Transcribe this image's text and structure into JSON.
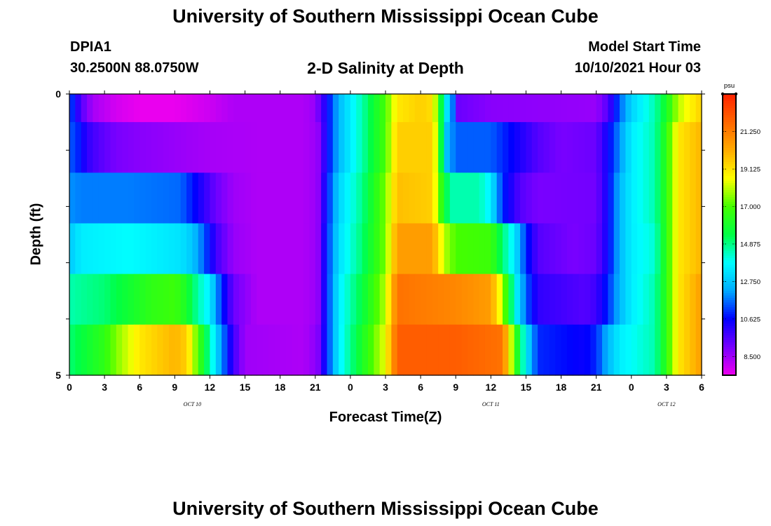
{
  "page": {
    "title_top": "University of Southern Mississippi Ocean Cube",
    "title_bottom": "University of Southern Mississippi Ocean Cube",
    "station": "DPIA1",
    "location": "30.2500N  88.0750W",
    "model_start_label": "Model Start Time",
    "model_start_value": "10/10/2021 Hour 03"
  },
  "chart_data": {
    "type": "heatmap",
    "title": "2-D Salinity at Depth",
    "xlabel": "Forecast Time(Z)",
    "ylabel": "Depth (ft)",
    "x_range_hours": [
      0,
      54
    ],
    "y_range": [
      0,
      5
    ],
    "y_ticks": [
      "0",
      "",
      "",
      "",
      "",
      "5"
    ],
    "x_ticks": [
      "0",
      "3",
      "6",
      "9",
      "12",
      "15",
      "18",
      "21",
      "0",
      "3",
      "6",
      "9",
      "12",
      "15",
      "18",
      "21",
      "0",
      "3",
      "6"
    ],
    "day_labels": [
      {
        "label": "OCT  10",
        "hour": 10.5
      },
      {
        "label": "OCT  11",
        "hour": 36
      },
      {
        "label": "OCT  12",
        "hour": 51
      }
    ],
    "colorbar": {
      "unit": "psu",
      "min": 7.44,
      "max": 23.38,
      "tick_labels": [
        "21.250",
        "19.125",
        "17.000",
        "14.875",
        "12.750",
        "10.625",
        "8.500"
      ],
      "tick_values": [
        21.25,
        19.125,
        17.0,
        14.875,
        12.75,
        10.625,
        8.5
      ],
      "colors": [
        "#ee00ee",
        "#7700ff",
        "#0000ff",
        "#00aaff",
        "#00ffff",
        "#00ff44",
        "#44ff00",
        "#ffff00",
        "#ffaa00",
        "#ff6600",
        "#ff2200"
      ]
    },
    "series": [
      {
        "name": "depth layer 1",
        "keyframes": [
          [
            0,
            11.5
          ],
          [
            1,
            9.5
          ],
          [
            2,
            8.4
          ],
          [
            4,
            7.8
          ],
          [
            6,
            7.5
          ],
          [
            9,
            7.5
          ],
          [
            12,
            7.9
          ],
          [
            14,
            8.3
          ],
          [
            16,
            8.3
          ],
          [
            20,
            8.3
          ],
          [
            21,
            8.6
          ],
          [
            22,
            10.5
          ],
          [
            23,
            12.5
          ],
          [
            25,
            14.5
          ],
          [
            27,
            17
          ],
          [
            28,
            19
          ],
          [
            30,
            19.5
          ],
          [
            31,
            19.2
          ],
          [
            31.5,
            17
          ],
          [
            32,
            14
          ],
          [
            32.7,
            12
          ],
          [
            33.2,
            9.2
          ],
          [
            36,
            8.8
          ],
          [
            45,
            8.6
          ],
          [
            46,
            9.5
          ],
          [
            47,
            11.5
          ],
          [
            48,
            13
          ],
          [
            50,
            14.5
          ],
          [
            51,
            16
          ],
          [
            52,
            18
          ],
          [
            54,
            19.5
          ]
        ]
      },
      {
        "name": "depth layer 2",
        "keyframes": [
          [
            0,
            11.5
          ],
          [
            0.7,
            11
          ],
          [
            1.5,
            10
          ],
          [
            2.5,
            9.5
          ],
          [
            4,
            9.0
          ],
          [
            6,
            8.8
          ],
          [
            9,
            8.6
          ],
          [
            12,
            8.4
          ],
          [
            16,
            8.3
          ],
          [
            20,
            8.3
          ],
          [
            21.2,
            8.6
          ],
          [
            22,
            10.5
          ],
          [
            23,
            12.5
          ],
          [
            25,
            14.5
          ],
          [
            27,
            17
          ],
          [
            28,
            19.5
          ],
          [
            31,
            19.5
          ],
          [
            31.6,
            17
          ],
          [
            32,
            13
          ],
          [
            33,
            11.5
          ],
          [
            36,
            11.5
          ],
          [
            38,
            10.5
          ],
          [
            40,
            9.5
          ],
          [
            42,
            9
          ],
          [
            45,
            9.2
          ],
          [
            46,
            10.5
          ],
          [
            47,
            12
          ],
          [
            48,
            13.5
          ],
          [
            50,
            14.5
          ],
          [
            51,
            16.5
          ],
          [
            52,
            19
          ],
          [
            54,
            20
          ]
        ]
      },
      {
        "name": "depth layer 3",
        "keyframes": [
          [
            0,
            12
          ],
          [
            1,
            11.8
          ],
          [
            5,
            11.8
          ],
          [
            9.5,
            11.6
          ],
          [
            10.5,
            10.8
          ],
          [
            11.5,
            10
          ],
          [
            12.5,
            9.2
          ],
          [
            14,
            8.5
          ],
          [
            16,
            8.3
          ],
          [
            20,
            8.3
          ],
          [
            21.2,
            8.6
          ],
          [
            22,
            10.8
          ],
          [
            23,
            13
          ],
          [
            25,
            14.8
          ],
          [
            27,
            17.5
          ],
          [
            28,
            19.8
          ],
          [
            31,
            19.5
          ],
          [
            31.8,
            16.5
          ],
          [
            32.5,
            14.5
          ],
          [
            35,
            14.5
          ],
          [
            36,
            13.5
          ],
          [
            37,
            11
          ],
          [
            38.5,
            9.5
          ],
          [
            40,
            9
          ],
          [
            45,
            9.1
          ],
          [
            46,
            10.5
          ],
          [
            47,
            12.5
          ],
          [
            48,
            13.5
          ],
          [
            50,
            14.5
          ],
          [
            51,
            16.5
          ],
          [
            52,
            19
          ],
          [
            54,
            20
          ]
        ]
      },
      {
        "name": "depth layer 4",
        "keyframes": [
          [
            0,
            12.8
          ],
          [
            1,
            13.5
          ],
          [
            5,
            13.8
          ],
          [
            9.5,
            13.3
          ],
          [
            10.5,
            12.8
          ],
          [
            11.5,
            11.5
          ],
          [
            12.5,
            9.8
          ],
          [
            14,
            8.6
          ],
          [
            16,
            8.3
          ],
          [
            20,
            8.3
          ],
          [
            21.2,
            8.6
          ],
          [
            22,
            11
          ],
          [
            23,
            13.2
          ],
          [
            25,
            15
          ],
          [
            27,
            17.5
          ],
          [
            28,
            20.5
          ],
          [
            31,
            20.5
          ],
          [
            32,
            18
          ],
          [
            33,
            17
          ],
          [
            36,
            16.8
          ],
          [
            37,
            15
          ],
          [
            38,
            13.5
          ],
          [
            39,
            11
          ],
          [
            40,
            9.5
          ],
          [
            43,
            9
          ],
          [
            45,
            9.2
          ],
          [
            46,
            10.5
          ],
          [
            47,
            12.5
          ],
          [
            48,
            13.5
          ],
          [
            50,
            14.2
          ],
          [
            51,
            16.5
          ],
          [
            52,
            19
          ],
          [
            54,
            20
          ]
        ]
      },
      {
        "name": "depth layer 5",
        "keyframes": [
          [
            0,
            14.5
          ],
          [
            1,
            14.7
          ],
          [
            3,
            15
          ],
          [
            5,
            15.8
          ],
          [
            7,
            16.5
          ],
          [
            9,
            16.8
          ],
          [
            10,
            16
          ],
          [
            11,
            14.5
          ],
          [
            12,
            13.5
          ],
          [
            13,
            11
          ],
          [
            14,
            9.2
          ],
          [
            16,
            8.3
          ],
          [
            20,
            8.3
          ],
          [
            21.2,
            8.6
          ],
          [
            22,
            11
          ],
          [
            23,
            13.5
          ],
          [
            25,
            15.5
          ],
          [
            27,
            18
          ],
          [
            28,
            21.5
          ],
          [
            33,
            21
          ],
          [
            36,
            20.5
          ],
          [
            37,
            18
          ],
          [
            38,
            14
          ],
          [
            39,
            11.5
          ],
          [
            40,
            10
          ],
          [
            44,
            9.5
          ],
          [
            45,
            9.8
          ],
          [
            46,
            11
          ],
          [
            47,
            12.5
          ],
          [
            48,
            13.5
          ],
          [
            50,
            14.5
          ],
          [
            51,
            16.5
          ],
          [
            52,
            19
          ],
          [
            54,
            20.5
          ]
        ]
      },
      {
        "name": "depth layer 6",
        "keyframes": [
          [
            0,
            15
          ],
          [
            1,
            15.5
          ],
          [
            3,
            16.5
          ],
          [
            4,
            17.5
          ],
          [
            6,
            19
          ],
          [
            9,
            20
          ],
          [
            10,
            19.5
          ],
          [
            11,
            17
          ],
          [
            12,
            14.5
          ],
          [
            13,
            12
          ],
          [
            14,
            9.8
          ],
          [
            15,
            8.5
          ],
          [
            20,
            8.3
          ],
          [
            21.2,
            8.8
          ],
          [
            22,
            11
          ],
          [
            23,
            13.5
          ],
          [
            25,
            16
          ],
          [
            27,
            18.5
          ],
          [
            28,
            22
          ],
          [
            33,
            22
          ],
          [
            37,
            21.5
          ],
          [
            38,
            17
          ],
          [
            39,
            13.5
          ],
          [
            40,
            11
          ],
          [
            44,
            10.5
          ],
          [
            45,
            11
          ],
          [
            46,
            12.5
          ],
          [
            47,
            13.5
          ],
          [
            50,
            14.5
          ],
          [
            51,
            16.5
          ],
          [
            52,
            19
          ],
          [
            54,
            20.5
          ]
        ]
      }
    ]
  }
}
